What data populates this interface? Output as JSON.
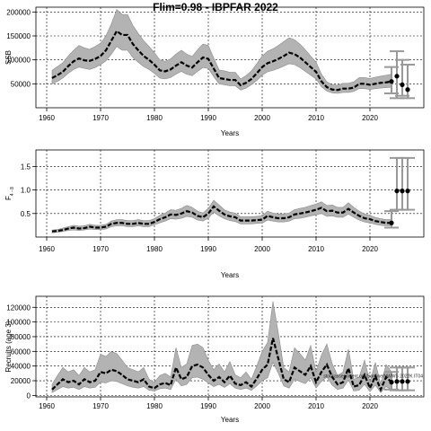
{
  "figure": {
    "title": "Flim=0.98 - IBPFAR 2022"
  },
  "chart_data": [
    {
      "type": "line",
      "ylabel": "SSB",
      "xlabel": "Years",
      "xlim": [
        1958,
        2030
      ],
      "ylim": [
        0,
        210000
      ],
      "x_ticks": [
        1960,
        1970,
        1980,
        1990,
        2000,
        2010,
        2020
      ],
      "y_ticks": [
        50000,
        100000,
        150000,
        200000
      ],
      "grid": true,
      "x": [
        1961,
        1962,
        1963,
        1964,
        1965,
        1966,
        1967,
        1968,
        1969,
        1970,
        1971,
        1972,
        1973,
        1974,
        1975,
        1976,
        1977,
        1978,
        1979,
        1980,
        1981,
        1982,
        1983,
        1984,
        1985,
        1986,
        1987,
        1988,
        1989,
        1990,
        1991,
        1992,
        1993,
        1994,
        1995,
        1996,
        1997,
        1998,
        1999,
        2000,
        2001,
        2002,
        2003,
        2004,
        2005,
        2006,
        2007,
        2008,
        2009,
        2010,
        2011,
        2012,
        2013,
        2014,
        2015,
        2016,
        2017,
        2018,
        2019,
        2020,
        2021,
        2022,
        2023,
        2024
      ],
      "estimate": [
        62000,
        68000,
        75000,
        87000,
        97000,
        103000,
        99000,
        98000,
        102000,
        108000,
        120000,
        140000,
        160000,
        152000,
        152000,
        133000,
        120000,
        108000,
        100000,
        90000,
        78000,
        76000,
        80000,
        88000,
        95000,
        88000,
        84000,
        95000,
        105000,
        102000,
        82000,
        62000,
        60000,
        58000,
        58000,
        47000,
        52000,
        60000,
        72000,
        85000,
        93000,
        97000,
        102000,
        108000,
        115000,
        112000,
        105000,
        95000,
        85000,
        75000,
        55000,
        43000,
        38000,
        37000,
        40000,
        40000,
        42000,
        50000,
        50000,
        48000,
        50000,
        52000,
        53000,
        55000
      ],
      "ci_low": [
        50000,
        55000,
        62000,
        72000,
        80000,
        85000,
        82000,
        80000,
        84000,
        90000,
        98000,
        112000,
        128000,
        120000,
        120000,
        105000,
        95000,
        86000,
        80000,
        72000,
        62000,
        60000,
        63000,
        70000,
        76000,
        70000,
        67000,
        76000,
        84000,
        82000,
        65000,
        50000,
        48000,
        46000,
        46000,
        37000,
        41000,
        48000,
        57000,
        68000,
        75000,
        78000,
        82000,
        87000,
        92000,
        90000,
        84000,
        76000,
        68000,
        60000,
        44000,
        35000,
        31000,
        30000,
        32000,
        32000,
        34000,
        40000,
        40000,
        38000,
        40000,
        41000,
        42000,
        43000
      ],
      "ci_high": [
        78000,
        86000,
        94000,
        108000,
        120000,
        130000,
        125000,
        122000,
        128000,
        135000,
        150000,
        175000,
        205000,
        195000,
        195000,
        172000,
        155000,
        140000,
        128000,
        115000,
        100000,
        97000,
        102000,
        112000,
        120000,
        112000,
        107000,
        121000,
        133000,
        130000,
        104000,
        79000,
        77000,
        74000,
        74000,
        60000,
        67000,
        77000,
        92000,
        108000,
        118000,
        123000,
        130000,
        138000,
        146000,
        142000,
        133000,
        121000,
        108000,
        95000,
        70000,
        54000,
        48000,
        47000,
        51000,
        51000,
        54000,
        63000,
        63000,
        61000,
        64000,
        66000,
        68000,
        70000
      ],
      "forecast_points": [
        {
          "x": 2024,
          "y": 55000,
          "low": 30000,
          "high": 85000
        },
        {
          "x": 2025,
          "y": 66000,
          "low": 20000,
          "high": 118000
        },
        {
          "x": 2026,
          "y": 48000,
          "low": 25000,
          "high": 100000
        },
        {
          "x": 2027,
          "y": 38000,
          "low": 20000,
          "high": 90000
        }
      ]
    },
    {
      "type": "line",
      "ylabel": "F",
      "ylabel_sub": "4 - 8",
      "xlabel": "Years",
      "xlim": [
        1958,
        2030
      ],
      "ylim": [
        0,
        1.85
      ],
      "x_ticks": [
        1960,
        1970,
        1980,
        1990,
        2000,
        2010,
        2020
      ],
      "y_ticks": [
        0.5,
        1.0,
        1.5
      ],
      "y_tick_labels": [
        "0.5",
        "1.0",
        "1.5"
      ],
      "grid": true,
      "x": [
        1961,
        1962,
        1963,
        1964,
        1965,
        1966,
        1967,
        1968,
        1969,
        1970,
        1971,
        1972,
        1973,
        1974,
        1975,
        1976,
        1977,
        1978,
        1979,
        1980,
        1981,
        1982,
        1983,
        1984,
        1985,
        1986,
        1987,
        1988,
        1989,
        1990,
        1991,
        1992,
        1993,
        1994,
        1995,
        1996,
        1997,
        1998,
        1999,
        2000,
        2001,
        2002,
        2003,
        2004,
        2005,
        2006,
        2007,
        2008,
        2009,
        2010,
        2011,
        2012,
        2013,
        2014,
        2015,
        2016,
        2017,
        2018,
        2019,
        2020,
        2021,
        2022,
        2023,
        2024
      ],
      "estimate": [
        0.12,
        0.13,
        0.15,
        0.18,
        0.2,
        0.18,
        0.19,
        0.22,
        0.2,
        0.2,
        0.22,
        0.28,
        0.3,
        0.3,
        0.28,
        0.28,
        0.3,
        0.28,
        0.28,
        0.32,
        0.38,
        0.42,
        0.48,
        0.47,
        0.5,
        0.55,
        0.52,
        0.45,
        0.42,
        0.5,
        0.65,
        0.56,
        0.48,
        0.44,
        0.42,
        0.35,
        0.35,
        0.35,
        0.36,
        0.37,
        0.45,
        0.42,
        0.4,
        0.4,
        0.42,
        0.48,
        0.5,
        0.52,
        0.55,
        0.58,
        0.62,
        0.55,
        0.56,
        0.52,
        0.52,
        0.6,
        0.52,
        0.45,
        0.4,
        0.38,
        0.34,
        0.32,
        0.3,
        0.3
      ],
      "ci_low": [
        0.09,
        0.1,
        0.12,
        0.14,
        0.15,
        0.14,
        0.15,
        0.17,
        0.16,
        0.16,
        0.17,
        0.22,
        0.24,
        0.24,
        0.22,
        0.22,
        0.24,
        0.22,
        0.22,
        0.26,
        0.3,
        0.34,
        0.39,
        0.38,
        0.4,
        0.44,
        0.42,
        0.36,
        0.34,
        0.4,
        0.53,
        0.45,
        0.39,
        0.35,
        0.33,
        0.28,
        0.28,
        0.28,
        0.29,
        0.3,
        0.36,
        0.34,
        0.32,
        0.32,
        0.34,
        0.39,
        0.4,
        0.42,
        0.45,
        0.47,
        0.5,
        0.44,
        0.45,
        0.42,
        0.42,
        0.49,
        0.42,
        0.36,
        0.32,
        0.3,
        0.27,
        0.25,
        0.24,
        0.24
      ],
      "ci_high": [
        0.15,
        0.16,
        0.19,
        0.22,
        0.25,
        0.23,
        0.24,
        0.27,
        0.25,
        0.25,
        0.27,
        0.34,
        0.37,
        0.37,
        0.35,
        0.35,
        0.37,
        0.35,
        0.35,
        0.39,
        0.46,
        0.51,
        0.58,
        0.57,
        0.61,
        0.67,
        0.63,
        0.55,
        0.51,
        0.61,
        0.78,
        0.68,
        0.58,
        0.53,
        0.51,
        0.43,
        0.43,
        0.43,
        0.44,
        0.45,
        0.55,
        0.51,
        0.49,
        0.49,
        0.51,
        0.58,
        0.61,
        0.63,
        0.67,
        0.7,
        0.75,
        0.67,
        0.68,
        0.63,
        0.63,
        0.73,
        0.63,
        0.55,
        0.49,
        0.46,
        0.42,
        0.39,
        0.37,
        0.37
      ],
      "forecast_points": [
        {
          "x": 2024,
          "y": 0.3,
          "low": 0.2,
          "high": 0.55
        },
        {
          "x": 2025,
          "y": 0.98,
          "low": 0.58,
          "high": 1.68
        },
        {
          "x": 2026,
          "y": 0.98,
          "low": 0.58,
          "high": 1.68
        },
        {
          "x": 2027,
          "y": 0.98,
          "low": 0.58,
          "high": 1.68
        }
      ]
    },
    {
      "type": "line",
      "ylabel": "Recruits (age 3)",
      "xlabel": "Years",
      "xlim": [
        1958,
        2030
      ],
      "ylim": [
        -2000,
        135000
      ],
      "x_ticks": [
        1960,
        1970,
        1980,
        1990,
        2000,
        2010,
        2020
      ],
      "y_ticks": [
        0,
        20000,
        40000,
        60000,
        80000,
        100000,
        120000
      ],
      "grid": true,
      "annotation": "stockassessment.org/Sardine/NWWS 2022K IT04",
      "x": [
        1961,
        1962,
        1963,
        1964,
        1965,
        1966,
        1967,
        1968,
        1969,
        1970,
        1971,
        1972,
        1973,
        1974,
        1975,
        1976,
        1977,
        1978,
        1979,
        1980,
        1981,
        1982,
        1983,
        1984,
        1985,
        1986,
        1987,
        1988,
        1989,
        1990,
        1991,
        1992,
        1993,
        1994,
        1995,
        1996,
        1997,
        1998,
        1999,
        2000,
        2001,
        2002,
        2003,
        2004,
        2005,
        2006,
        2007,
        2008,
        2009,
        2010,
        2011,
        2012,
        2013,
        2014,
        2015,
        2016,
        2017,
        2018,
        2019,
        2020,
        2021,
        2022,
        2023,
        2024
      ],
      "estimate": [
        8000,
        15000,
        22000,
        18000,
        20000,
        15000,
        22000,
        18000,
        20000,
        32000,
        30000,
        35000,
        33000,
        28000,
        22000,
        20000,
        18000,
        22000,
        12000,
        10000,
        15000,
        17000,
        14000,
        38000,
        22000,
        25000,
        40000,
        42000,
        38000,
        28000,
        20000,
        25000,
        18000,
        27000,
        16000,
        14000,
        18000,
        12000,
        23000,
        35000,
        42000,
        78000,
        50000,
        22000,
        18000,
        38000,
        33000,
        28000,
        40000,
        18000,
        32000,
        42000,
        25000,
        15000,
        18000,
        37000,
        12000,
        14000,
        28000,
        10000,
        26000,
        8000,
        25000,
        18000
      ],
      "ci_low": [
        4000,
        8000,
        12000,
        10000,
        11000,
        8000,
        12000,
        10000,
        11000,
        18000,
        17000,
        20000,
        19000,
        16000,
        13000,
        11000,
        10000,
        12000,
        7000,
        6000,
        9000,
        10000,
        8000,
        22000,
        13000,
        15000,
        24000,
        25000,
        22000,
        17000,
        12000,
        15000,
        11000,
        16000,
        10000,
        8000,
        10000,
        7000,
        13000,
        20000,
        24000,
        45000,
        30000,
        13000,
        10000,
        22000,
        19000,
        16000,
        24000,
        10000,
        19000,
        25000,
        14000,
        8000,
        10000,
        21000,
        6000,
        7000,
        15000,
        5000,
        14000,
        4000,
        12000,
        8000
      ],
      "ci_high": [
        15000,
        27000,
        38000,
        32000,
        35000,
        27000,
        38000,
        32000,
        35000,
        56000,
        53000,
        60000,
        57000,
        48000,
        38000,
        35000,
        32000,
        38000,
        22000,
        18000,
        27000,
        30000,
        25000,
        65000,
        38000,
        43000,
        68000,
        70000,
        65000,
        48000,
        35000,
        43000,
        32000,
        46000,
        28000,
        24000,
        32000,
        22000,
        40000,
        60000,
        72000,
        128000,
        85000,
        38000,
        32000,
        65000,
        57000,
        48000,
        68000,
        32000,
        55000,
        70000,
        43000,
        27000,
        32000,
        63000,
        22000,
        25000,
        48000,
        18000,
        45000,
        15000,
        42000,
        32000
      ],
      "forecast_points": [
        {
          "x": 2024,
          "y": 18000,
          "low": 8000,
          "high": 32000
        },
        {
          "x": 2025,
          "y": 19000,
          "low": 7000,
          "high": 38000
        },
        {
          "x": 2026,
          "y": 19000,
          "low": 7000,
          "high": 38000
        },
        {
          "x": 2027,
          "y": 19000,
          "low": 7000,
          "high": 38000
        }
      ]
    }
  ]
}
